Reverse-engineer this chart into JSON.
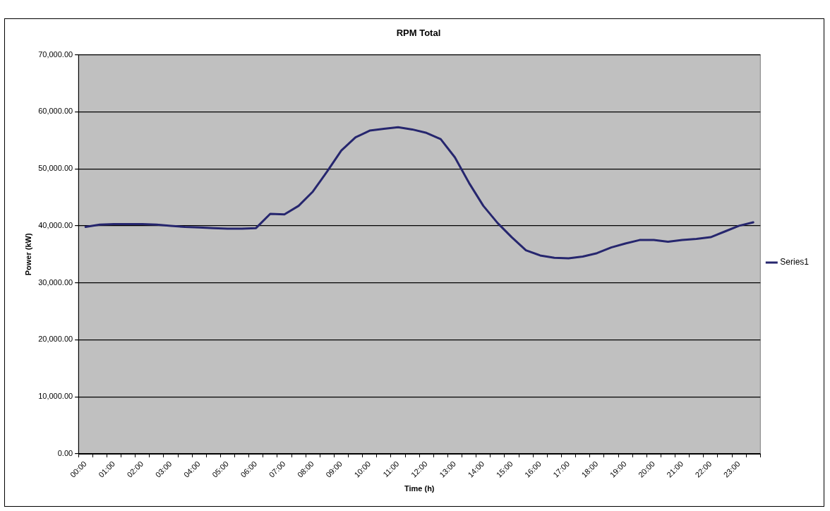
{
  "chart_data": {
    "type": "line",
    "title": "RPM Total",
    "xlabel": "Time (h)",
    "ylabel": "Power (kW)",
    "categories": [
      "00:00",
      null,
      "01:00",
      null,
      "02:00",
      null,
      "03:00",
      null,
      "04:00",
      null,
      "05:00",
      null,
      "06:00",
      null,
      "07:00",
      null,
      "08:00",
      null,
      "09:00",
      null,
      "10:00",
      null,
      "11:00",
      null,
      "12:00",
      null,
      "13:00",
      null,
      "14:00",
      null,
      "15:00",
      null,
      "16:00",
      null,
      "17:00",
      null,
      "18:00",
      null,
      "19:00",
      null,
      "20:00",
      null,
      "21:00",
      null,
      "22:00",
      null,
      "23:00",
      null
    ],
    "series": [
      {
        "name": "Series1",
        "color": "#26266e",
        "values": [
          39800,
          40200,
          40300,
          40300,
          40300,
          40200,
          40000,
          39800,
          39700,
          39600,
          39500,
          39500,
          39600,
          42100,
          42000,
          43500,
          46000,
          49500,
          53200,
          55500,
          56700,
          57000,
          57300,
          56900,
          56300,
          55200,
          52000,
          47500,
          43500,
          40500,
          38000,
          35700,
          34800,
          34400,
          34300,
          34600,
          35200,
          36200,
          36900,
          37500,
          37500,
          37200,
          37500,
          37700,
          38000,
          39000,
          40000,
          40600
        ]
      }
    ],
    "ylim": [
      0,
      70000
    ],
    "yticks": [
      {
        "value": 0,
        "label": "0.00"
      },
      {
        "value": 10000,
        "label": "10,000.00"
      },
      {
        "value": 20000,
        "label": "20,000.00"
      },
      {
        "value": 30000,
        "label": "30,000.00"
      },
      {
        "value": 40000,
        "label": "40,000.00"
      },
      {
        "value": 50000,
        "label": "50,000.00"
      },
      {
        "value": 60000,
        "label": "60,000.00"
      },
      {
        "value": 70000,
        "label": "70,000.00"
      }
    ],
    "grid": "y",
    "legend": "right",
    "marker": "none",
    "line_style": "solid"
  }
}
